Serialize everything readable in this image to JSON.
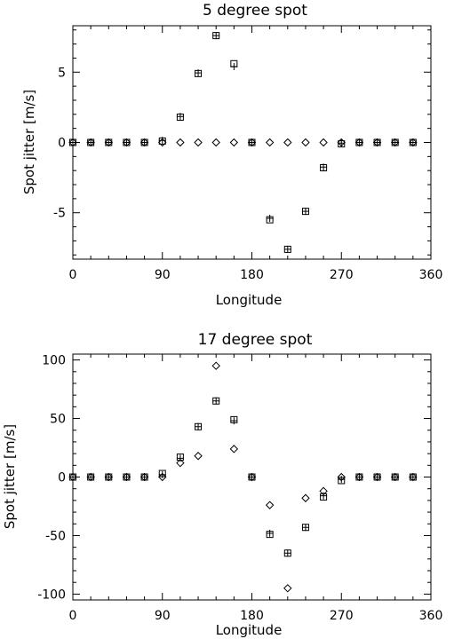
{
  "chart_data": [
    {
      "type": "scatter",
      "title": "5 degree spot",
      "xlabel": "Longitude",
      "ylabel": "Spot jitter [m/s]",
      "xlim": [
        0,
        360
      ],
      "ylim": [
        -8.3,
        8.3
      ],
      "xticks": [
        0,
        90,
        180,
        270,
        360
      ],
      "yticks": [
        -5,
        0,
        5
      ],
      "grid": false,
      "x": [
        0,
        18,
        36,
        54,
        72,
        90,
        108,
        126,
        144,
        162,
        180,
        198,
        216,
        234,
        252,
        270,
        288,
        306,
        324,
        342
      ],
      "series": [
        {
          "marker": "square",
          "values": [
            0,
            0,
            0,
            0,
            0,
            0.1,
            1.8,
            4.9,
            7.6,
            5.6,
            0,
            -5.5,
            -7.6,
            -4.9,
            -1.8,
            -0.1,
            0,
            0,
            0,
            0
          ]
        },
        {
          "marker": "plus",
          "values": [
            0,
            0,
            0,
            0,
            0,
            0.15,
            1.85,
            4.95,
            7.6,
            5.4,
            0,
            -5.4,
            -7.6,
            -4.9,
            -1.75,
            -0.05,
            0,
            0,
            0,
            0
          ]
        },
        {
          "marker": "diamond",
          "values": [
            0,
            0,
            0,
            0,
            0,
            0,
            0,
            0,
            0,
            0,
            0,
            0,
            0,
            0,
            0,
            0,
            0,
            0,
            0,
            0
          ]
        }
      ]
    },
    {
      "type": "scatter",
      "title": "17 degree spot",
      "xlabel": "Longitude",
      "ylabel": "Spot jitter [m/s]",
      "xlim": [
        0,
        360
      ],
      "ylim": [
        -105,
        105
      ],
      "xticks": [
        0,
        90,
        180,
        270,
        360
      ],
      "yticks": [
        -100,
        -50,
        0,
        50,
        100
      ],
      "grid": false,
      "x": [
        0,
        18,
        36,
        54,
        72,
        90,
        108,
        126,
        144,
        162,
        180,
        198,
        216,
        234,
        252,
        270,
        288,
        306,
        324,
        342
      ],
      "series": [
        {
          "marker": "square",
          "values": [
            0,
            0,
            0,
            0,
            0,
            3,
            17,
            43,
            65,
            49,
            0,
            -49,
            -65,
            -43,
            -17,
            -3,
            0,
            0,
            0,
            0
          ]
        },
        {
          "marker": "plus",
          "values": [
            0,
            0,
            0,
            0,
            0,
            2,
            16,
            43,
            65,
            48,
            0,
            -48,
            -65,
            -43,
            -16,
            -2,
            0,
            0,
            0,
            0
          ]
        },
        {
          "marker": "diamond",
          "values": [
            0,
            0,
            0,
            0,
            0,
            0,
            12,
            18,
            95,
            24,
            0,
            -24,
            -95,
            -18,
            -12,
            0,
            0,
            0,
            0,
            0
          ]
        }
      ]
    }
  ]
}
